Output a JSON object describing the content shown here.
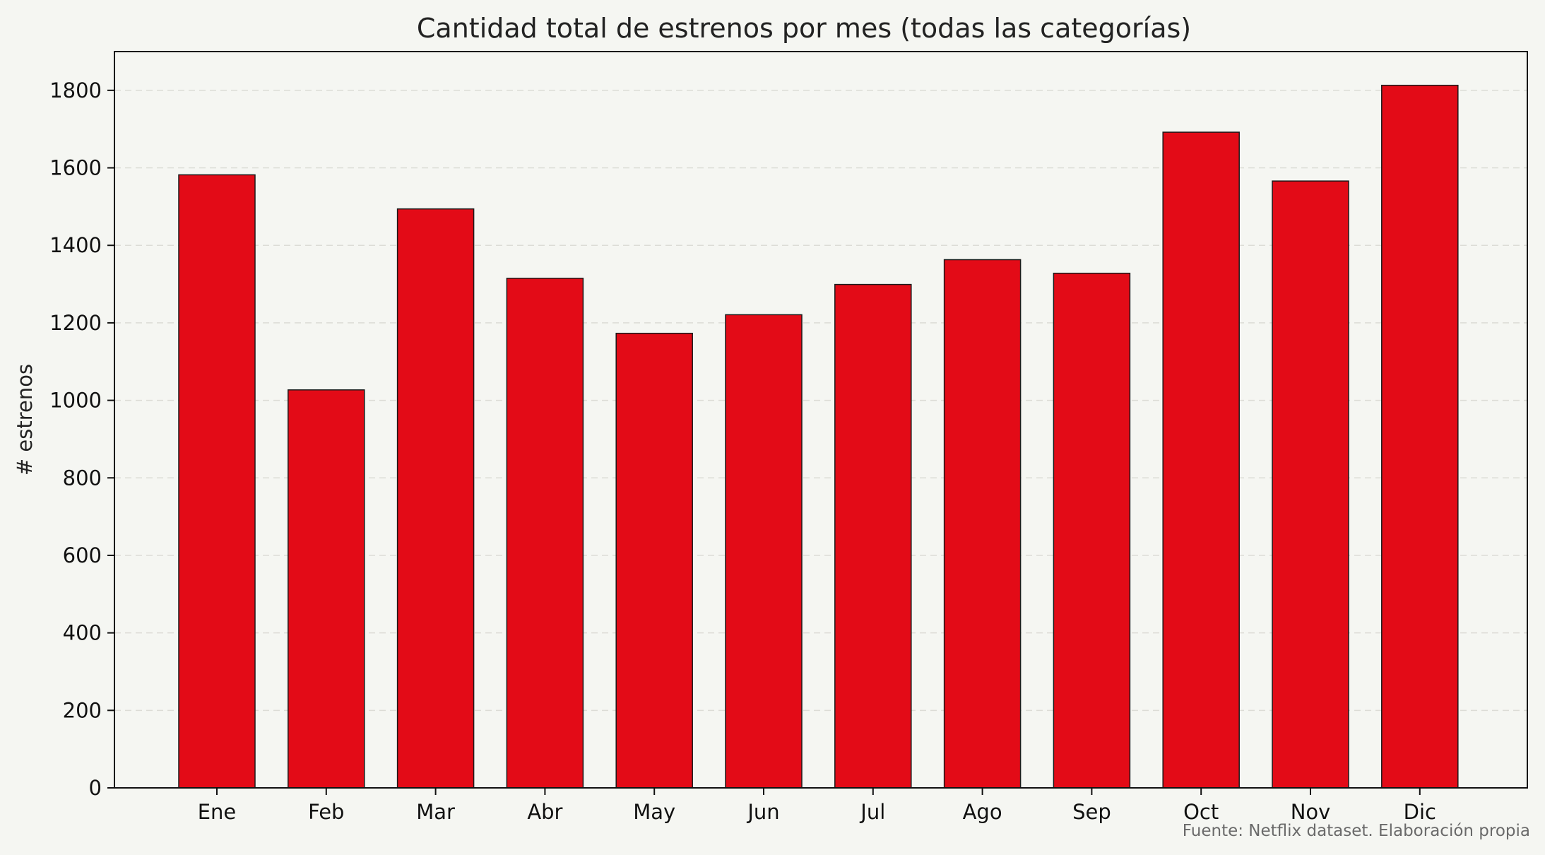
{
  "chart_data": {
    "type": "bar",
    "title": "Cantidad total de estrenos por mes (todas las categorías)",
    "xlabel": "",
    "ylabel": "# estrenos",
    "categories": [
      "Ene",
      "Feb",
      "Mar",
      "Abr",
      "May",
      "Jun",
      "Jul",
      "Ago",
      "Sep",
      "Oct",
      "Nov",
      "Dic"
    ],
    "values": [
      1582,
      1027,
      1494,
      1315,
      1173,
      1221,
      1299,
      1363,
      1328,
      1692,
      1566,
      1813
    ],
    "ylim": [
      0,
      1900
    ],
    "yticks": [
      0,
      200,
      400,
      600,
      800,
      1000,
      1200,
      1400,
      1600,
      1800
    ],
    "grid": "y-dashed",
    "legend": "none",
    "colors": {
      "bar": "#e30b17",
      "bar_edge": "#1a1a1a",
      "background": "#f5f6f2",
      "grid": "#dcdcd6"
    },
    "source": "Fuente: Netflix dataset. Elaboración propia"
  }
}
